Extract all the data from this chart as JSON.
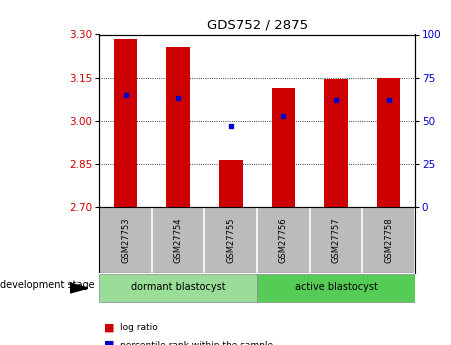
{
  "title": "GDS752 / 2875",
  "samples": [
    "GSM27753",
    "GSM27754",
    "GSM27755",
    "GSM27756",
    "GSM27757",
    "GSM27758"
  ],
  "log_ratios": [
    3.285,
    3.255,
    2.865,
    3.115,
    3.145,
    3.148
  ],
  "percentile_ranks": [
    65,
    63,
    47,
    53,
    62,
    62
  ],
  "ylim_left": [
    2.7,
    3.3
  ],
  "ylim_right": [
    0,
    100
  ],
  "yticks_left": [
    2.7,
    2.85,
    3.0,
    3.15,
    3.3
  ],
  "yticks_right": [
    0,
    25,
    50,
    75,
    100
  ],
  "bar_color": "#cc0000",
  "dot_color": "#0000cc",
  "bar_bottom": 2.7,
  "groups": [
    {
      "label": "dormant blastocyst",
      "color": "#99dd99",
      "start": 0,
      "end": 3
    },
    {
      "label": "active blastocyst",
      "color": "#55cc55",
      "start": 3,
      "end": 6
    }
  ],
  "group_label": "development stage",
  "legend_items": [
    {
      "label": "log ratio",
      "color": "#cc0000"
    },
    {
      "label": "percentile rank within the sample",
      "color": "#0000cc"
    }
  ],
  "tick_label_color_left": "#cc0000",
  "tick_label_color_right": "#0000cc",
  "sample_bg_color": "#bbbbbb"
}
